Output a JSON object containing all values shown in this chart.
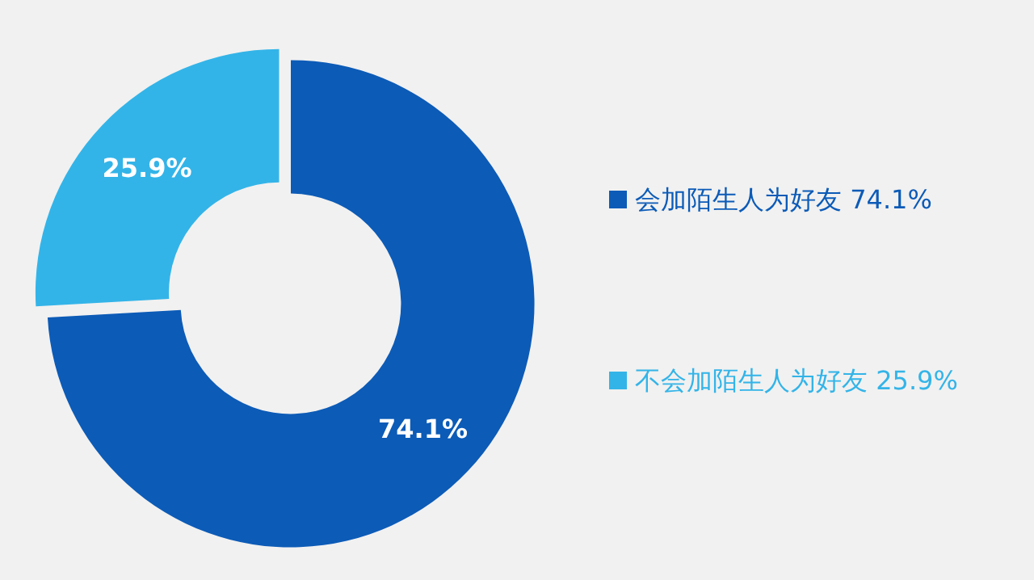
{
  "chart_data": {
    "type": "donut",
    "categories": [
      "会加陌生人为好友",
      "不会加陌生人为好友"
    ],
    "values": [
      74.1,
      25.9
    ],
    "colors": [
      "#0c5bb7",
      "#33b4e8"
    ],
    "value_labels": [
      "74.1%",
      "25.9%"
    ],
    "legend": "right"
  }
}
